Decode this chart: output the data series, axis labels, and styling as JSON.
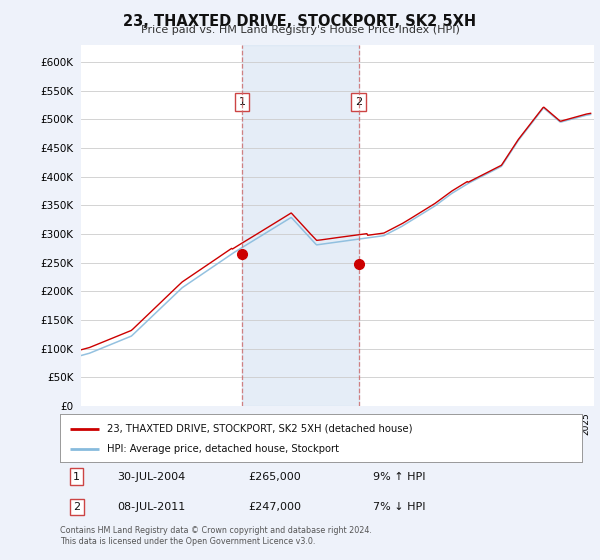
{
  "title": "23, THAXTED DRIVE, STOCKPORT, SK2 5XH",
  "subtitle": "Price paid vs. HM Land Registry's House Price Index (HPI)",
  "yticks": [
    0,
    50000,
    100000,
    150000,
    200000,
    250000,
    300000,
    350000,
    400000,
    450000,
    500000,
    550000,
    600000
  ],
  "ylim": [
    0,
    630000
  ],
  "xlim_start": 1995,
  "xlim_end": 2025.5,
  "sale1_date": 2004.57,
  "sale1_price": 265000,
  "sale1_label": "1",
  "sale2_date": 2011.52,
  "sale2_price": 247000,
  "sale2_label": "2",
  "bg_color": "#eef2fa",
  "plot_bg": "#ffffff",
  "red_color": "#cc0000",
  "blue_color": "#88bbdd",
  "shade_color": "#ccddf0",
  "shade_alpha": 0.5,
  "grid_color": "#cccccc",
  "footer_text": "Contains HM Land Registry data © Crown copyright and database right 2024.\nThis data is licensed under the Open Government Licence v3.0.",
  "legend_entry1": "23, THAXTED DRIVE, STOCKPORT, SK2 5XH (detached house)",
  "legend_entry2": "HPI: Average price, detached house, Stockport",
  "ann1_date": "30-JUL-2004",
  "ann1_price": "£265,000",
  "ann1_pct": "9% ↑ HPI",
  "ann2_date": "08-JUL-2011",
  "ann2_price": "£247,000",
  "ann2_pct": "7% ↓ HPI"
}
